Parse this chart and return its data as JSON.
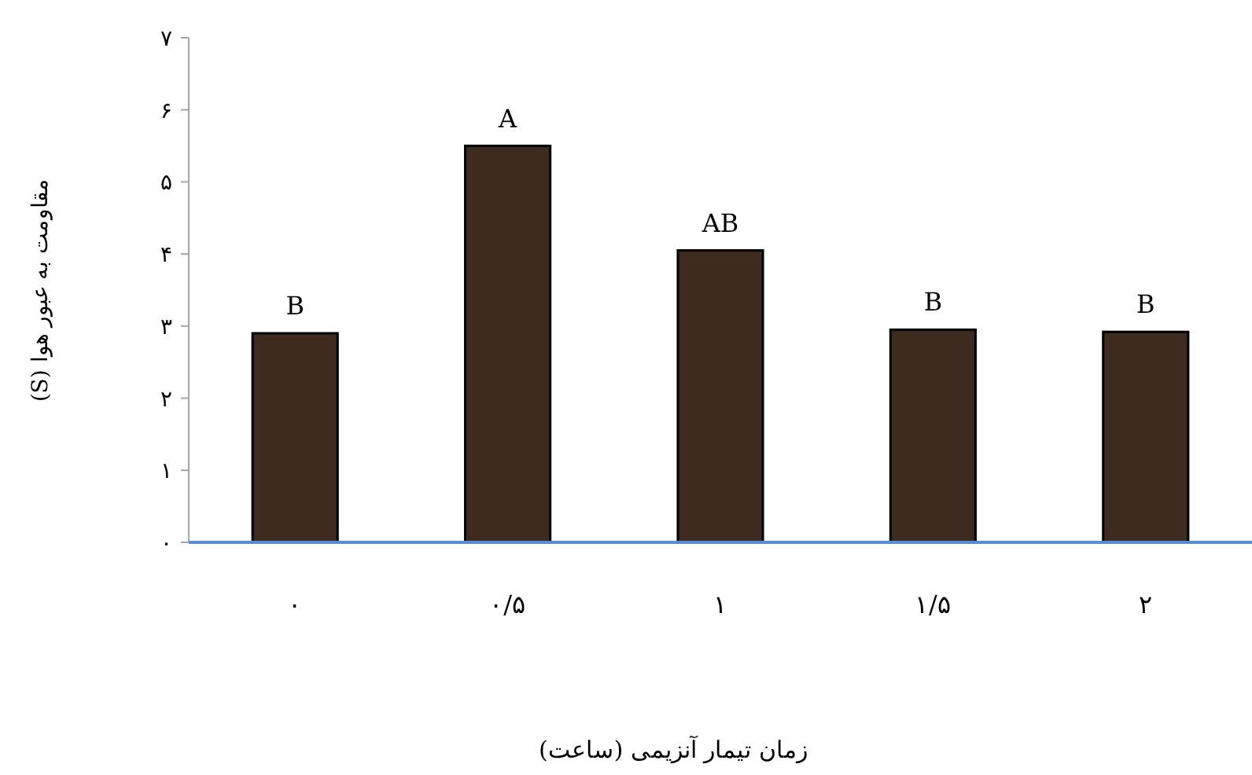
{
  "chart_data": {
    "type": "bar",
    "xlabel": "زمان تیمار آنزیمی (ساعت)",
    "ylabel": "مقاومت به عبور هوا (S)",
    "categories": [
      "۰",
      "۰/۵",
      "۱",
      "۱/۵",
      "۲"
    ],
    "values": [
      2.9,
      5.5,
      4.05,
      2.95,
      2.92
    ],
    "value_labels": [
      "B",
      "A",
      "AB",
      "B",
      "B"
    ],
    "color": "#3d2b1f",
    "ylim": [
      0,
      7
    ],
    "yticks": [
      {
        "value": 0,
        "label": "۰"
      },
      {
        "value": 1,
        "label": "۱"
      },
      {
        "value": 2,
        "label": "۲"
      },
      {
        "value": 3,
        "label": "۳"
      },
      {
        "value": 4,
        "label": "۴"
      },
      {
        "value": 5,
        "label": "۵"
      },
      {
        "value": 6,
        "label": "۶"
      },
      {
        "value": 7,
        "label": "۷"
      }
    ]
  }
}
